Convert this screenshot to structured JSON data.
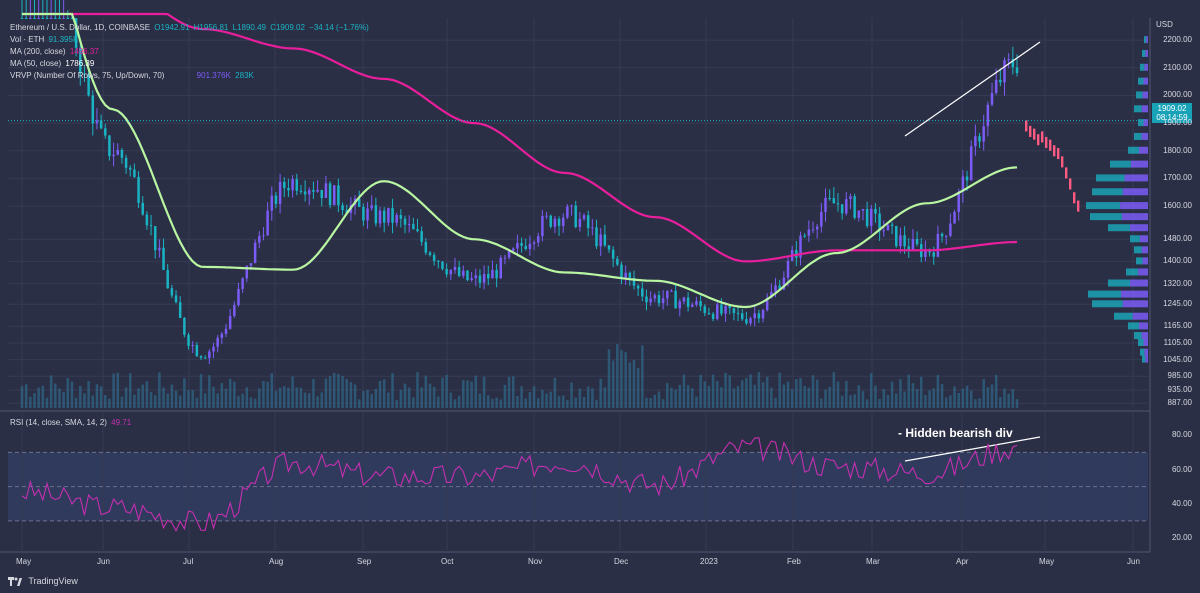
{
  "header": {
    "symbol": "Ethereum / U.S. Dollar, 1D, COINBASE",
    "open": "O1942.91",
    "high": "H1956.81",
    "low": "L1890.49",
    "close": "C1909.02",
    "change": "−34.14 (−1.76%)",
    "vol_label": "Vol · ETH",
    "vol_value": "91.395K",
    "ma200_label": "MA (200, close)",
    "ma200_value": "1496.37",
    "ma50_label": "MA (50, close)",
    "ma50_value": "1786.39",
    "vrvp_label": "VRVP (Number Of Rows, 75, Up/Down, 70)",
    "vrvp_value1": "901.376K",
    "vrvp_value2": "283K"
  },
  "rsi_legend": {
    "label": "RSI (14, close, SMA, 14, 2)",
    "value": "49.71"
  },
  "annotation": "- Hidden bearish div",
  "current_price": {
    "price": "1909.02",
    "countdown": "08:14:59"
  },
  "branding": "TradingView",
  "colors": {
    "background": "#2b2f45",
    "bull_candle": "#7b5cf6",
    "bear_candle": "#19b4c4",
    "ma200": "#e91e9c",
    "ma50": "#b9f6a2",
    "rsi_line": "#c52fb0",
    "rsi_band": "#303a5c",
    "forecast": "#ff5a82"
  },
  "chart_data": {
    "type": "line",
    "title": "Ethereum / U.S. Dollar, 1D, COINBASE",
    "price_axis": {
      "unit": "USD",
      "ticks": [
        2200,
        2100,
        2000,
        1900,
        1800,
        1700,
        1600,
        1480,
        1400,
        1320,
        1245,
        1165,
        1105,
        1045,
        985,
        935,
        887
      ],
      "ylim": [
        870,
        2280
      ]
    },
    "x_ticks": [
      "May",
      "Jun",
      "Jul",
      "Aug",
      "Sep",
      "Oct",
      "Nov",
      "Dec",
      "2023",
      "Feb",
      "Mar",
      "Apr",
      "May",
      "Jun"
    ],
    "series": [
      {
        "name": "ETHUSD",
        "x": [
          "May",
          "Jun",
          "Jul",
          "Aug",
          "Sep",
          "Oct",
          "Nov",
          "Dec",
          "2023",
          "Feb",
          "Mar",
          "Apr"
        ],
        "values": [
          2900,
          1800,
          1070,
          1690,
          1560,
          1330,
          1570,
          1270,
          1200,
          1610,
          1440,
          2120
        ]
      },
      {
        "name": "MA (200, close)",
        "x": [
          "May",
          "Jun",
          "Jul",
          "Aug",
          "Sep",
          "Oct",
          "Nov",
          "Dec",
          "2023",
          "Feb",
          "Mar",
          "Apr"
        ],
        "values": [
          2700,
          2400,
          2240,
          2170,
          2060,
          1900,
          1720,
          1560,
          1400,
          1440,
          1440,
          1470
        ]
      },
      {
        "name": "MA (50, close)",
        "x": [
          "May",
          "Jun",
          "Jul",
          "Aug",
          "Sep",
          "Oct",
          "Nov",
          "Dec",
          "2023",
          "Feb",
          "Mar",
          "Apr"
        ],
        "values": [
          2800,
          1950,
          1380,
          1370,
          1690,
          1480,
          1360,
          1330,
          1235,
          1430,
          1610,
          1740
        ]
      }
    ],
    "rsi": {
      "ticks": [
        80,
        60,
        40,
        20
      ],
      "ylim": [
        13,
        93
      ],
      "bands": [
        70,
        50,
        30
      ],
      "x": [
        "May",
        "Jun",
        "Jul",
        "Aug",
        "Sep",
        "Oct",
        "Nov",
        "Dec",
        "2023",
        "Feb",
        "Mar",
        "Apr"
      ],
      "values": [
        47,
        38,
        29,
        64,
        56,
        56,
        65,
        51,
        73,
        62,
        58,
        73
      ],
      "current": 49.71
    }
  }
}
